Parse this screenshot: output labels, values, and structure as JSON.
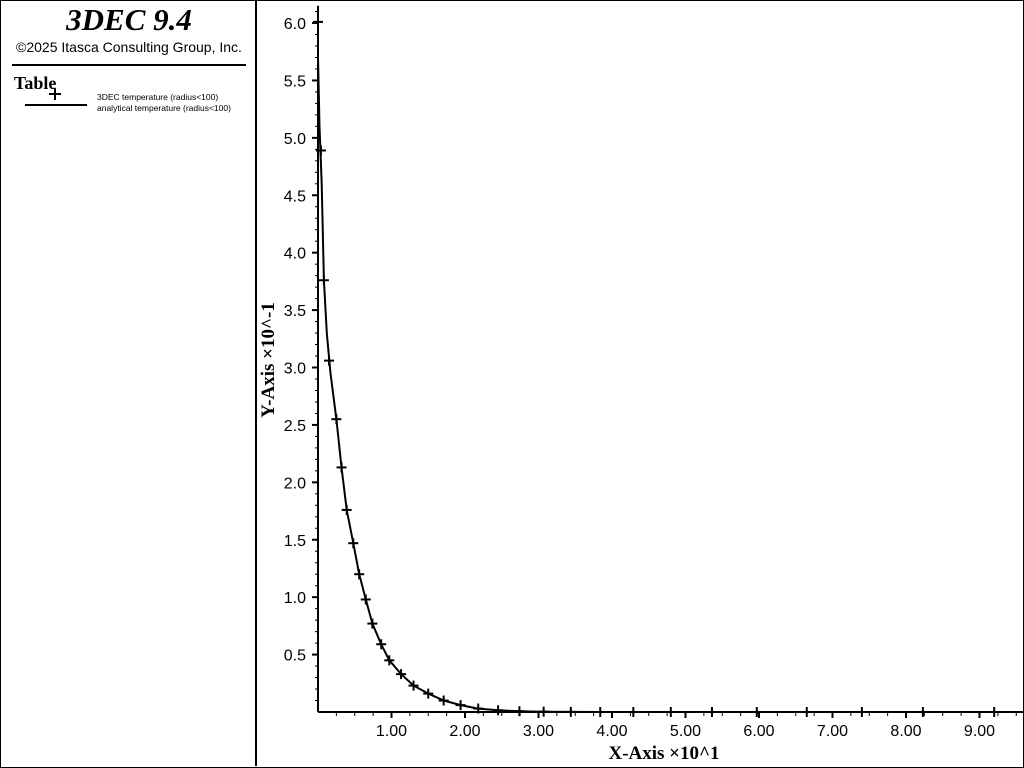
{
  "header": {
    "app_title": "3DEC 9.4",
    "copyright": "©2025 Itasca Consulting Group, Inc."
  },
  "legend": {
    "heading": "Table",
    "entries": [
      {
        "label": "3DEC temperature (radius<100)",
        "marker": "plus-icon"
      },
      {
        "label": "analytical temperature (radius<100)",
        "marker": "solid-line"
      }
    ]
  },
  "colors": {
    "background": "#ffffff",
    "foreground": "#000000"
  },
  "chart_data": {
    "type": "line",
    "xlabel": "X-Axis ×10^1",
    "ylabel": "Y-Axis ×10^-1",
    "xlim": [
      0,
      10
    ],
    "ylim": [
      0,
      6.15
    ],
    "grid": false,
    "legend_position": "left-panel",
    "x_ticks": [
      1,
      2,
      3,
      4,
      5,
      6,
      7,
      8,
      9
    ],
    "x_tick_labels": [
      "1.00",
      "2.00",
      "3.00",
      "4.00",
      "5.00",
      "6.00",
      "7.00",
      "8.00",
      "9.00"
    ],
    "y_ticks": [
      0.5,
      1,
      1.5,
      2,
      2.5,
      3,
      3.5,
      4,
      4.5,
      5,
      5.5,
      6
    ],
    "y_tick_labels": [
      "0.5",
      "1.0",
      "1.5",
      "2.0",
      "2.5",
      "3.0",
      "3.5",
      "4.0",
      "4.5",
      "5.0",
      "5.5",
      "6.0"
    ],
    "series": [
      {
        "name": "3DEC temperature (radius<100)",
        "style": "markers-plus",
        "x": [
          0.0,
          0.04,
          0.08,
          0.15,
          0.25,
          0.32,
          0.39,
          0.48,
          0.56,
          0.65,
          0.74,
          0.86,
          0.97,
          1.13,
          1.3,
          1.5,
          1.71,
          1.94,
          2.18,
          2.45,
          2.74,
          3.07,
          3.44,
          3.84,
          4.29,
          4.8,
          5.36,
          5.97,
          6.65,
          7.4,
          8.23,
          9.2
        ],
        "y": [
          6.01,
          4.89,
          3.76,
          3.06,
          2.55,
          2.13,
          1.76,
          1.47,
          1.2,
          0.98,
          0.77,
          0.59,
          0.45,
          0.33,
          0.23,
          0.16,
          0.1,
          0.06,
          0.03,
          0.015,
          0.007,
          0.003,
          0.001,
          0.0,
          0.0,
          0.0,
          0.0,
          0.0,
          0.0,
          0.0,
          0.0,
          0.0
        ]
      },
      {
        "name": "analytical temperature (radius<100)",
        "style": "line",
        "x": [
          0.0,
          0.02,
          0.05,
          0.08,
          0.12,
          0.17,
          0.25,
          0.32,
          0.39,
          0.48,
          0.56,
          0.65,
          0.74,
          0.86,
          0.97,
          1.13,
          1.3,
          1.5,
          1.71,
          1.94,
          2.18,
          2.45,
          2.74,
          3.07,
          3.44,
          3.84,
          4.5,
          6.0,
          8.0,
          10.0
        ],
        "y": [
          5.7,
          5.1,
          4.6,
          3.76,
          3.3,
          2.95,
          2.55,
          2.13,
          1.76,
          1.47,
          1.2,
          0.98,
          0.77,
          0.59,
          0.45,
          0.33,
          0.23,
          0.16,
          0.1,
          0.06,
          0.03,
          0.015,
          0.007,
          0.003,
          0.001,
          0.0,
          0.0,
          0.0,
          0.0,
          0.0
        ]
      }
    ]
  }
}
